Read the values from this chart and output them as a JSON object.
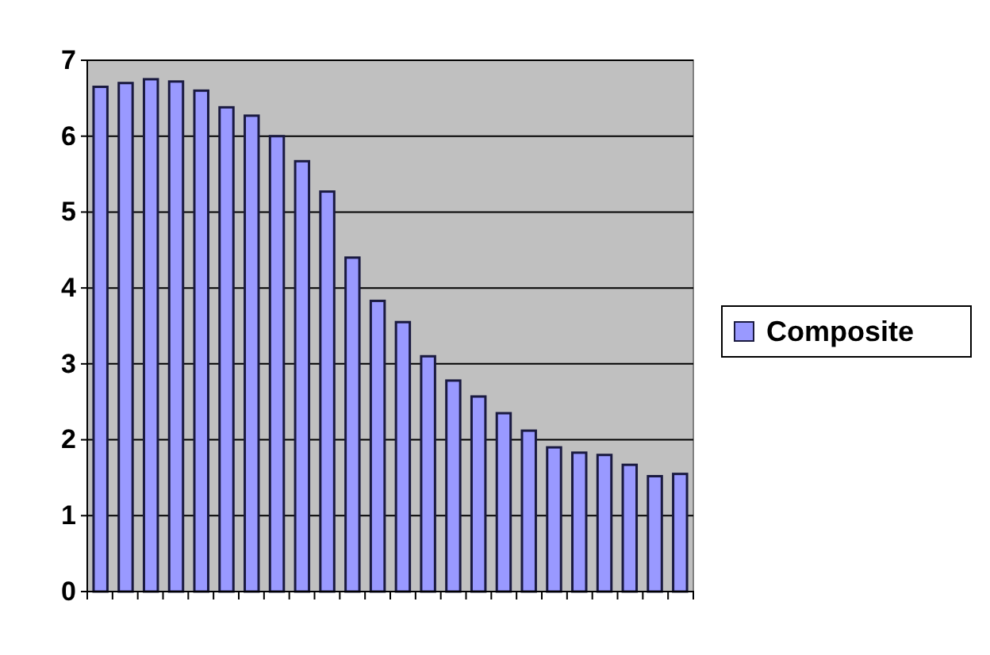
{
  "chart_data": {
    "type": "bar",
    "categories": [
      null,
      null,
      null,
      null,
      null,
      null,
      null,
      null,
      null,
      null,
      null,
      null,
      null,
      null,
      null,
      null,
      null,
      null,
      null,
      null,
      null,
      null,
      null,
      null
    ],
    "series": [
      {
        "name": "Composite",
        "color": "#9999ff",
        "values": [
          6.65,
          6.7,
          6.75,
          6.72,
          6.6,
          6.38,
          6.27,
          6.0,
          5.67,
          5.27,
          4.4,
          3.83,
          3.55,
          3.1,
          2.78,
          2.57,
          2.35,
          2.12,
          1.9,
          1.83,
          1.8,
          1.67,
          1.52,
          1.55
        ]
      }
    ],
    "ylim": [
      0,
      7
    ],
    "yticks": [
      0,
      1,
      2,
      3,
      4,
      5,
      6,
      7
    ],
    "grid": "y",
    "legend": "right"
  }
}
